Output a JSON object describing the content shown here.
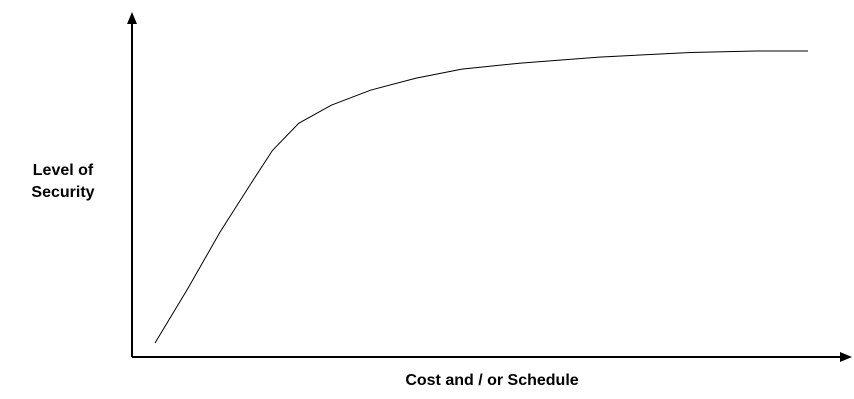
{
  "chart_data": {
    "type": "line",
    "title": "",
    "xlabel": "Cost and  / or Schedule",
    "ylabel_lines": [
      "Level of",
      "Security"
    ],
    "xlim": [
      0,
      100
    ],
    "ylim": [
      0,
      100
    ],
    "grid": false,
    "x_ticks": false,
    "y_ticks": false,
    "series": [
      {
        "x": [
          0,
          5,
          10,
          15,
          18,
          22,
          27,
          33,
          40,
          47,
          56,
          68,
          82,
          92,
          100
        ],
        "y": [
          0,
          18,
          37,
          54,
          64,
          73,
          79,
          84,
          88,
          91,
          93,
          95,
          96.5,
          97,
          97
        ]
      }
    ],
    "colors": {
      "line": "#000000",
      "axes": "#000000"
    }
  }
}
